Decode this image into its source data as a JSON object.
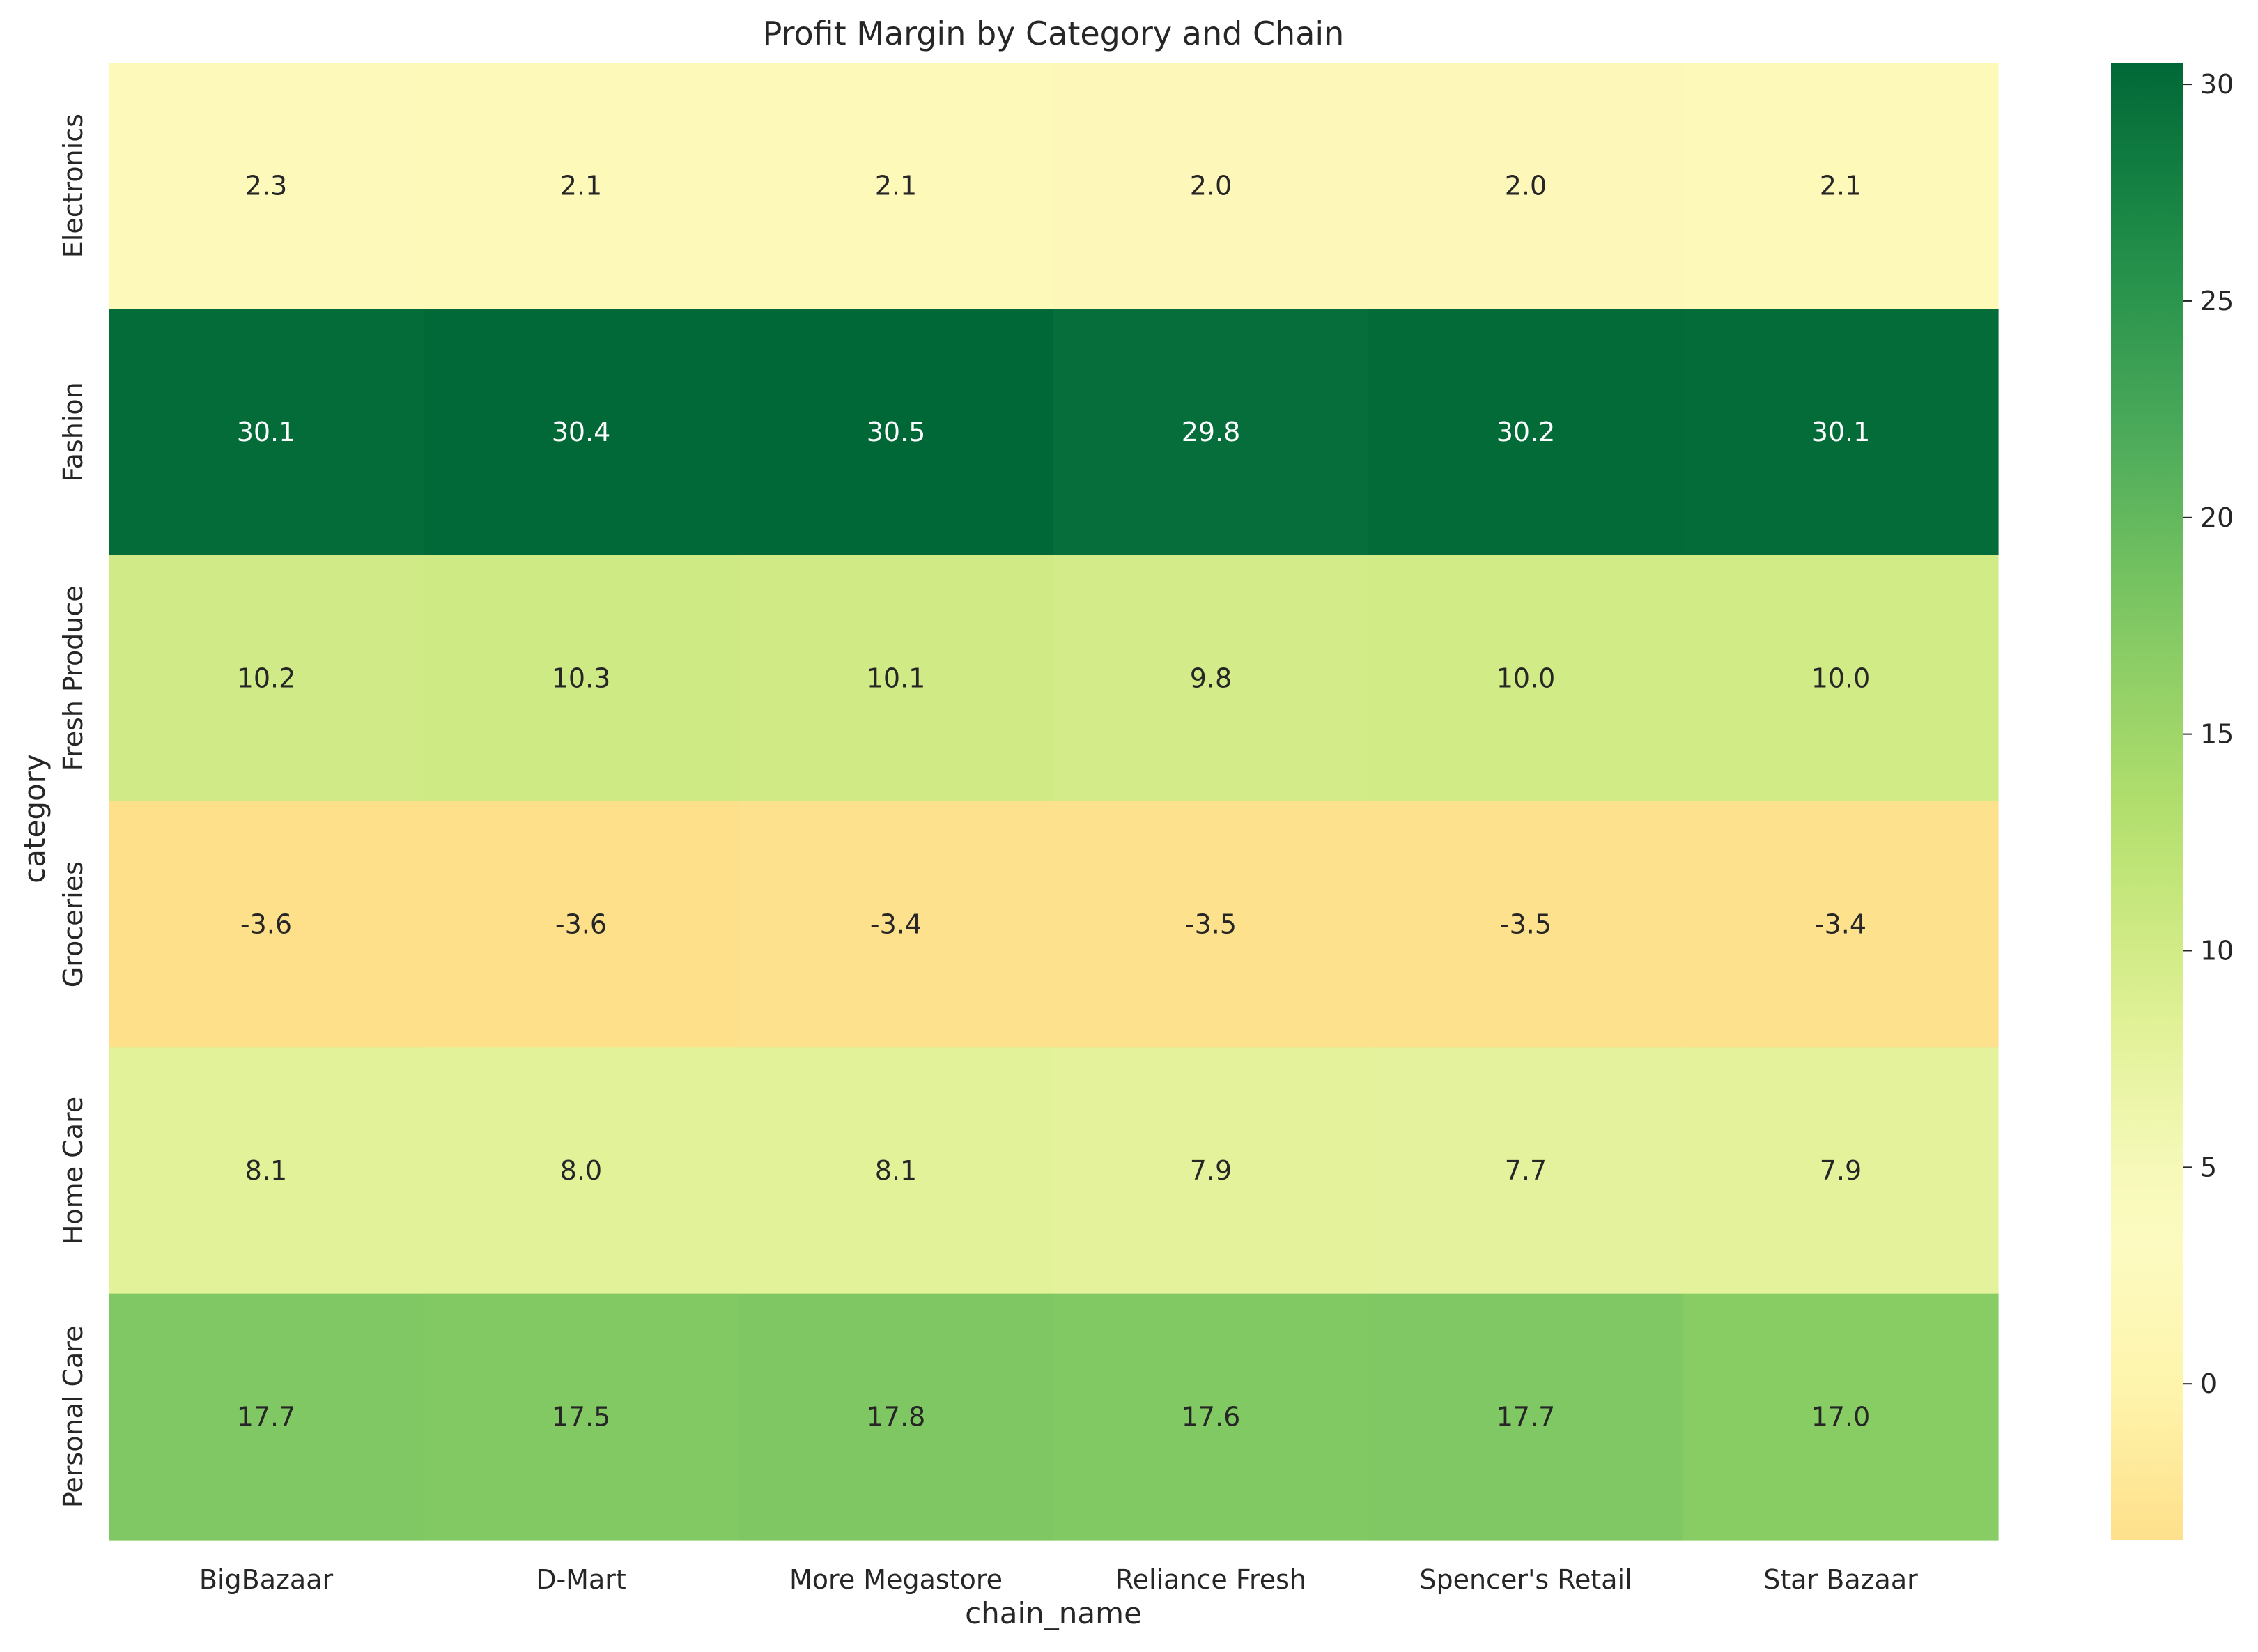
{
  "chart_data": {
    "type": "heatmap",
    "title": "Profit Margin by Category and Chain",
    "xlabel": "chain_name",
    "ylabel": "category",
    "columns": [
      "BigBazaar",
      "D-Mart",
      "More Megastore",
      "Reliance Fresh",
      "Spencer's Retail",
      "Star Bazaar"
    ],
    "rows": [
      "Electronics",
      "Fashion",
      "Fresh Produce",
      "Groceries",
      "Home Care",
      "Personal Care"
    ],
    "values": [
      [
        2.3,
        2.1,
        2.1,
        2.0,
        2.0,
        2.1
      ],
      [
        30.1,
        30.4,
        30.5,
        29.8,
        30.2,
        30.1
      ],
      [
        10.2,
        10.3,
        10.1,
        9.8,
        10.0,
        10.0
      ],
      [
        -3.6,
        -3.6,
        -3.4,
        -3.5,
        -3.5,
        -3.4
      ],
      [
        8.1,
        8.0,
        8.1,
        7.9,
        7.7,
        7.9
      ],
      [
        17.7,
        17.5,
        17.8,
        17.6,
        17.7,
        17.0
      ]
    ],
    "colormap": "YlGn",
    "color_range": [
      -3.6,
      30.5
    ],
    "colorbar_ticks": [
      0,
      5,
      10,
      15,
      20,
      25,
      30
    ],
    "value_format": "1 decimal",
    "grid": false
  }
}
